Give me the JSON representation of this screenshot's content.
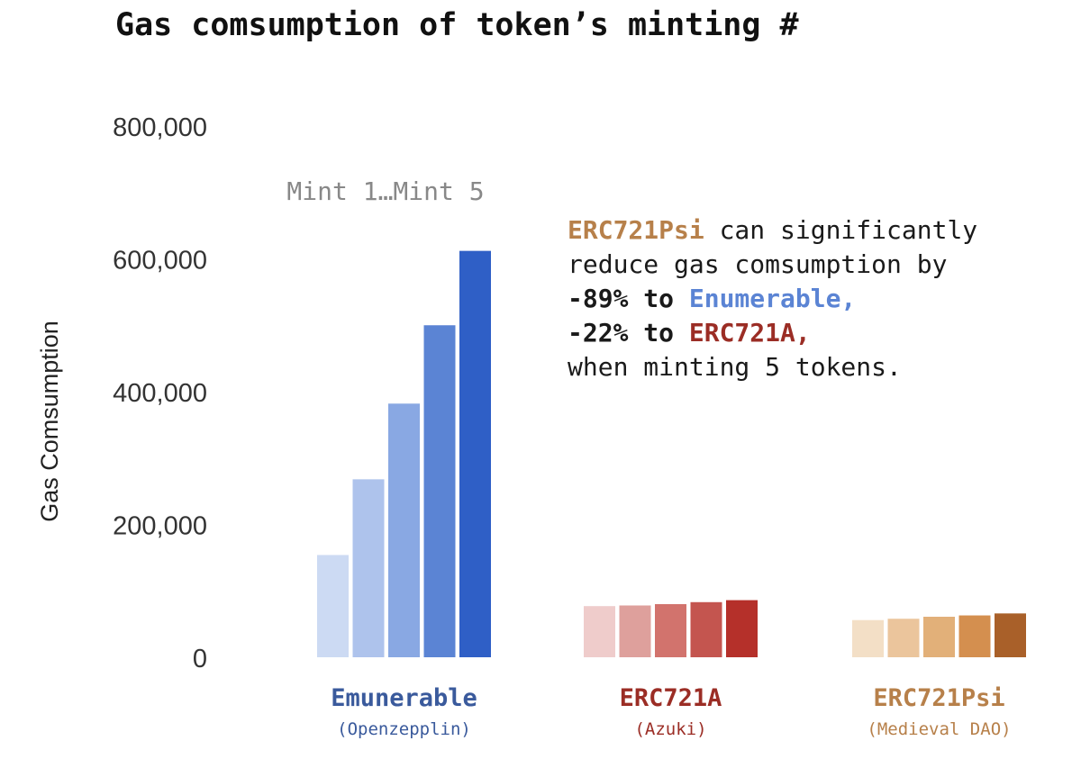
{
  "chart_data": {
    "type": "bar",
    "title": "Gas comsumption of token’s minting #",
    "ylabel": "Gas Comsumption",
    "xlabel": "",
    "ylim": [
      0,
      800000
    ],
    "yticks": [
      {
        "value": 0,
        "label": "0"
      },
      {
        "value": 200000,
        "label": "200,000"
      },
      {
        "value": 400000,
        "label": "400,000"
      },
      {
        "value": 600000,
        "label": "600,000"
      },
      {
        "value": 800000,
        "label": "800,000"
      }
    ],
    "grid": false,
    "legend": "none",
    "series_label": "Mint 1…Mint 5",
    "groups": [
      {
        "name": "Emunerable",
        "sublabel": "(Openzepplin)",
        "label_color": "#3a5a9c",
        "values": [
          154000,
          268000,
          382000,
          500000,
          612000
        ],
        "colors": [
          "#ccdaf3",
          "#aec3ec",
          "#89a8e3",
          "#5b84d4",
          "#2f5fc6"
        ]
      },
      {
        "name": "ERC721A",
        "sublabel": "(Azuki)",
        "label_color": "#9b2d25",
        "values": [
          77000,
          78000,
          80000,
          83000,
          86000
        ],
        "colors": [
          "#efcccb",
          "#dea09c",
          "#d2736d",
          "#c4554f",
          "#b5302a"
        ]
      },
      {
        "name": "ERC721Psi",
        "sublabel": "(Medieval DAO)",
        "label_color": "#b7804a",
        "values": [
          56000,
          58000,
          61000,
          63000,
          66000
        ],
        "colors": [
          "#f3dfc6",
          "#ebc59c",
          "#e2b079",
          "#d48f4f",
          "#a96029"
        ]
      }
    ]
  },
  "annotation": {
    "line1_highlight": "ERC721Psi",
    "line1_rest": " can significantly",
    "line2": "reduce gas comsumption by",
    "line3_prefix": "-89% to ",
    "line3_highlight": "Enumerable,",
    "line4_prefix": "-22% to ",
    "line4_highlight": "ERC721A,",
    "line5": "when minting 5 tokens.",
    "colors": {
      "psi": "#b7804a",
      "enumerable": "#5b84d4",
      "erc721a": "#9b2d25"
    }
  }
}
